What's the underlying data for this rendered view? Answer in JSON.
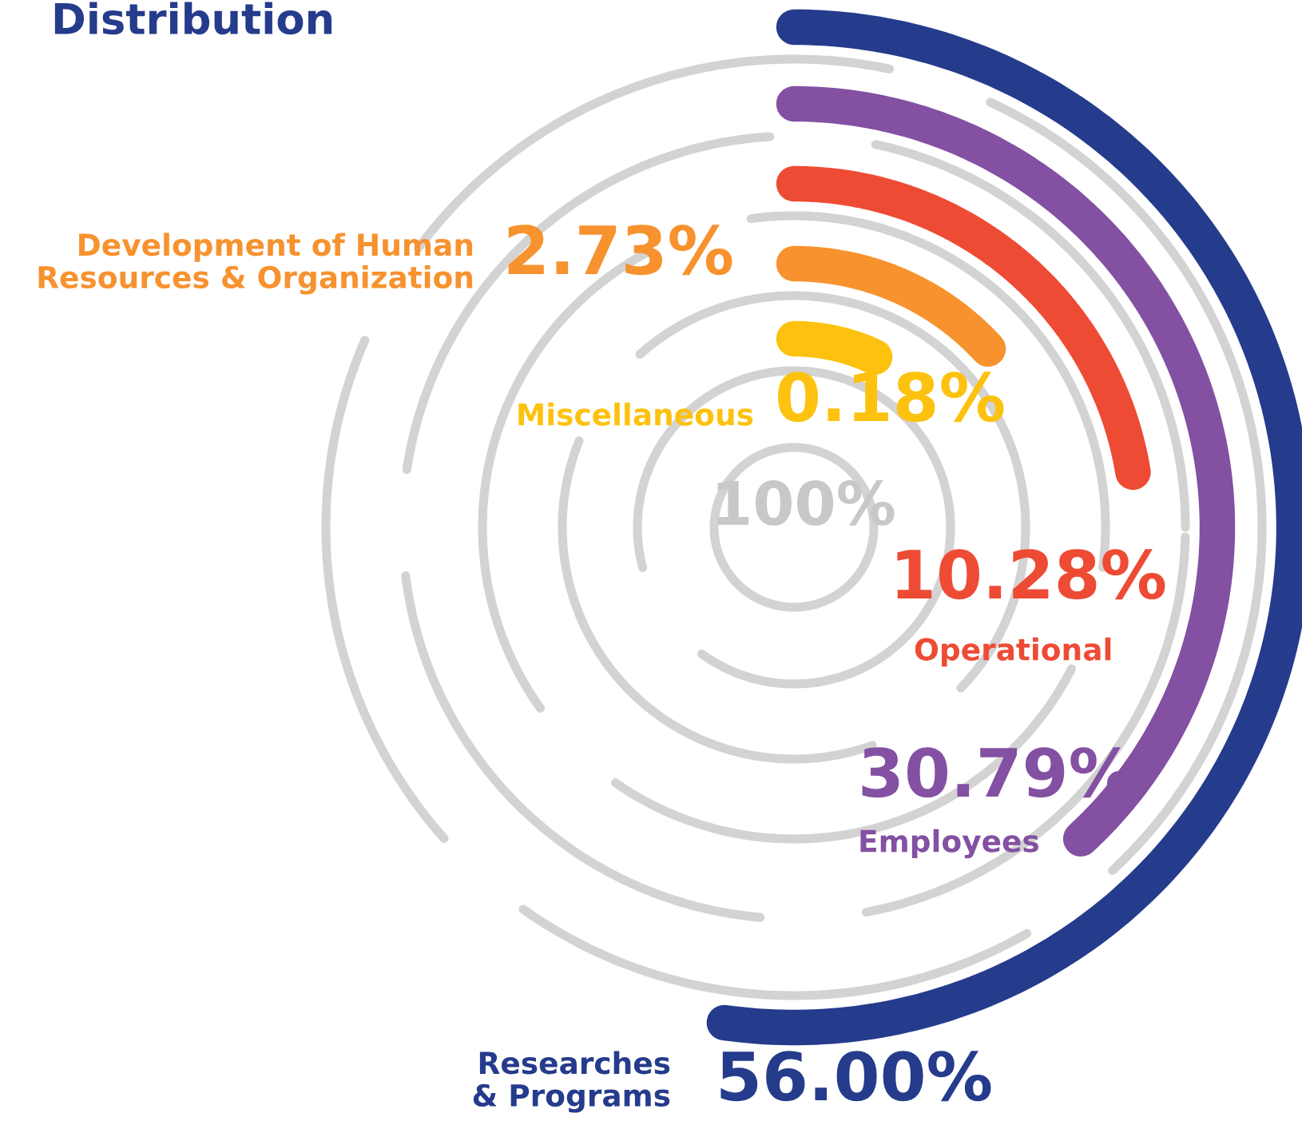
{
  "chart_data": {
    "type": "other",
    "title": "Distribution",
    "categories": [
      "Researches\n& Programs",
      "Employees",
      "Operational",
      "Development of Human\nResources & Organization",
      "Miscellaneous"
    ],
    "values": [
      56.0,
      30.79,
      10.28,
      2.73,
      0.18
    ],
    "value_labels": [
      "56.00%",
      "30.79%",
      "10.28%",
      "2.73%",
      "0.18%"
    ],
    "colors": [
      "#253b8c",
      "#8350a2",
      "#ee4b35",
      "#f7922e",
      "#fdc20f"
    ],
    "annotations": [
      "100%"
    ]
  }
}
